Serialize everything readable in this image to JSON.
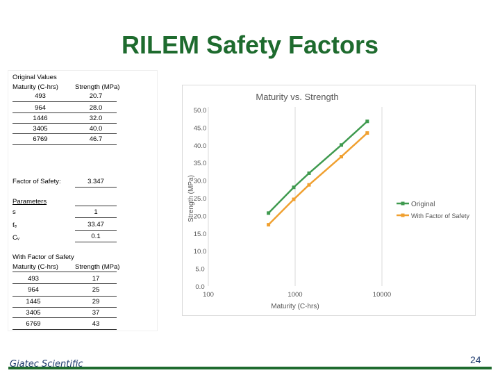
{
  "title": "RILEM Safety Factors",
  "original": {
    "heading": "Original Values",
    "col1": "Maturity (C-hrs)",
    "col2": "Strength (MPa)",
    "rows": [
      [
        "493",
        "20.7"
      ],
      [
        "964",
        "28.0"
      ],
      [
        "1446",
        "32.0"
      ],
      [
        "3405",
        "40.0"
      ],
      [
        "6769",
        "46.7"
      ]
    ]
  },
  "factor": {
    "label": "Factor of Safety:",
    "value": "3.347"
  },
  "parameters": {
    "heading": "Parameters",
    "rows": [
      {
        "label": "s",
        "value": "1"
      },
      {
        "label": "fₑ",
        "value": "33.47"
      },
      {
        "label": "Cᵥ",
        "value": "0.1"
      }
    ]
  },
  "with_factor": {
    "heading": "With Factor of Safety",
    "col1": "Maturity (C-hrs)",
    "col2": "Strength (MPa)",
    "rows": [
      [
        "493",
        "17"
      ],
      [
        "964",
        "25"
      ],
      [
        "1445",
        "29"
      ],
      [
        "3405",
        "37"
      ],
      [
        "6769",
        "43"
      ]
    ]
  },
  "chart_data": {
    "type": "line",
    "title": "Maturity vs. Strength",
    "xlabel": "Maturity (C-hrs)",
    "ylabel": "Strength (MPa)",
    "xscale": "log",
    "xlim": [
      100,
      10000
    ],
    "ylim": [
      0,
      50
    ],
    "xticks": [
      "100",
      "1000",
      "10000"
    ],
    "yticks": [
      "0.0",
      "5.0",
      "10.0",
      "15.0",
      "20.0",
      "25.0",
      "30.0",
      "35.0",
      "40.0",
      "45.0",
      "50.0"
    ],
    "grid": "vertical",
    "legend": "right",
    "series": [
      {
        "name": "Original",
        "color": "#3f9a4f",
        "x": [
          493,
          964,
          1446,
          3405,
          6769
        ],
        "y": [
          20.7,
          28.0,
          32.0,
          40.0,
          46.7
        ]
      },
      {
        "name": "With Factor of Safety",
        "color": "#f0a030",
        "x": [
          493,
          964,
          1445,
          3405,
          6769
        ],
        "y": [
          17.4,
          24.6,
          28.7,
          36.7,
          43.4
        ]
      }
    ]
  },
  "footer": {
    "company": "Giatec Scientific Inc.",
    "page": "24"
  },
  "colors": {
    "accent": "#1e6b2e",
    "footer_text": "#1f3b6e"
  }
}
